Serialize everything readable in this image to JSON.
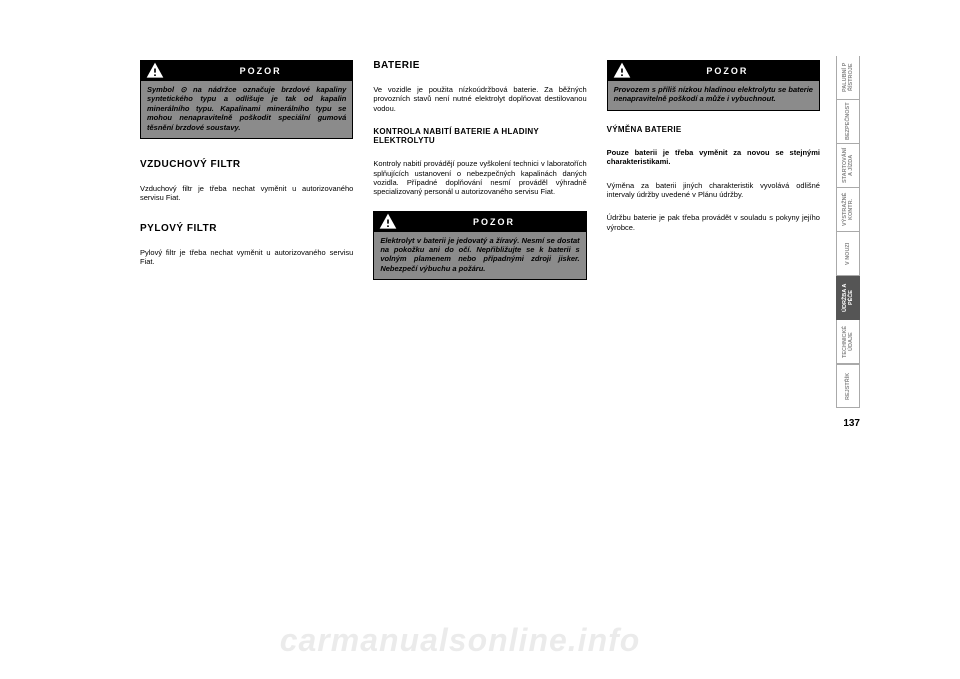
{
  "col1": {
    "warn1": {
      "title": "POZOR",
      "body": "Symbol ⊙ na nádržce označuje brzdové kapaliny syntetického typu a odlišuje je tak od kapalin minerálního typu. Kapalinami minerálního typu se mohou nenapravitelně poškodit speciální gumová těsnění brzdové soustavy."
    },
    "h_air": "VZDUCHOVÝ FILTR",
    "p_air": "Vzduchový filtr je třeba nechat vyměnit u autorizovaného servisu Fiat.",
    "h_pollen": "PYLOVÝ FILTR",
    "p_pollen": "Pylový filtr je třeba nechat vyměnit u autorizovaného servisu Fiat."
  },
  "col2": {
    "h_bat": "BATERIE",
    "p_bat": "Ve vozidle je použita nízkoúdržbová baterie. Za běžných provozních stavů není nutné elektrolyt doplňovat destilovanou vodou.",
    "h_ctrl": "KONTROLA NABITÍ BATERIE A HLADINY ELEKTROLYTU",
    "p_ctrl": "Kontroly nabití provádějí pouze vyškolení technici v laboratořích splňujících ustanovení o nebezpečných kapalinách daných vozidla. Případné doplňování nesmí prováděl výhradně specializovaný personál u autorizovaného servisu Fiat.",
    "warn2": {
      "title": "POZOR",
      "body": "Elektrolyt v baterii je jedovatý a žíravý. Nesmí se dostat na pokožku ani do očí. Nepřibližujte se k baterii s volným plamenem nebo případnými zdroji jisker. Nebezpečí výbuchu a požáru."
    }
  },
  "col3": {
    "warn3": {
      "title": "POZOR",
      "body": "Provozem s příliš nízkou hladinou elektrolytu se baterie nenapravitelně poškodí a může i vybuchnout."
    },
    "h_rep": "VÝMĚNA BATERIE",
    "p_rep1": "Pouze baterii je třeba vyměnit za novou se stejnými charakteristikami.",
    "p_rep2": "Výměna za baterii jiných charakteristik vyvolává odlišné intervaly údržby uvedené v Plánu údržby.",
    "p_rep3": "Údržbu baterie je pak třeba provádět v souladu s pokyny jejího výrobce."
  },
  "tabs": [
    {
      "label": "PALUBNÍ P ŘÍSTROJE",
      "active": false
    },
    {
      "label": "BEZPEČNOST",
      "active": false
    },
    {
      "label": "STARTOVÁNÍ A JÍZDA",
      "active": false
    },
    {
      "label": "VÝSTRAŽNÉ KONTR.",
      "active": false
    },
    {
      "label": "V NOUZI",
      "active": false
    },
    {
      "label": "ÚDRŽBA A PÉČE",
      "active": true
    },
    {
      "label": "TECHNICKÉ ÚDAJE",
      "active": false
    },
    {
      "label": "REJSTŘÍK",
      "active": false
    }
  ],
  "page_number": "137",
  "watermark": "carmanualsonline.info"
}
